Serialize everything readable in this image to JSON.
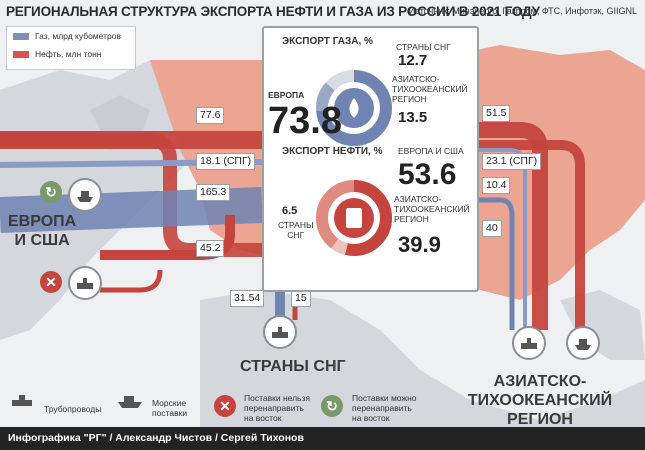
{
  "header": {
    "title": "РЕГИОНАЛЬНАЯ СТРУКТУРА ЭКСПОРТА НЕФТИ И ГАЗА ИЗ РОССИИ В 2021 ГОДУ",
    "source": "Источник: Минэнерго, Газпром, ФТС, Инфотэк, GIIGNL"
  },
  "legend": {
    "gas": "Газ, млрд кубометров",
    "oil": "Нефть, млн тонн",
    "gas_color": "#7b8fb9",
    "oil_color": "#d9534f"
  },
  "flows": {
    "europe_oil": "77.6",
    "europe_lng": "18.1 (СПГ)",
    "europe_gas": "165.3",
    "europe_oil2": "45.2",
    "cis_gas": "31.54",
    "cis_oil": "15",
    "asia_oil": "51.5",
    "asia_lng": "23.1 (СПГ)",
    "asia_gas": "10.4",
    "asia_oil2": "40"
  },
  "regions": {
    "europe_line1": "ЕВРОПА",
    "europe_line2": "И США",
    "cis": "СТРАНЫ СНГ",
    "asia_line1": "АЗИАТСКО- ТИХООКЕАНСКИЙ",
    "asia_line2": "РЕГИОН"
  },
  "gas_export": {
    "title": "ЭКСПОРТ ГАЗА, %",
    "europe_label": "ЕВРОПА",
    "europe_value": "73.8",
    "cis_label": "СТРАНЫ СНГ",
    "cis_value": "12.7",
    "asia_label_1": "АЗИАТСКО-",
    "asia_label_2": "ТИХООКЕАНСКИЙ",
    "asia_label_3": "РЕГИОН",
    "asia_value": "13.5"
  },
  "oil_export": {
    "title": "ЭКСПОРТ НЕФТИ, %",
    "europe_label": "ЕВРОПА И США",
    "europe_value": "53.6",
    "cis_value": "6.5",
    "cis_label_1": "СТРАНЫ",
    "cis_label_2": "СНГ",
    "asia_label_1": "АЗИАТСКО-",
    "asia_label_2": "ТИХООКЕАНСКИЙ",
    "asia_label_3": "РЕГИОН",
    "asia_value": "39.9"
  },
  "bottom_legend": {
    "pipelines": "Трубопроводы",
    "sea_1": "Морские",
    "sea_2": "поставки",
    "no_redirect_1": "Поставки нельзя",
    "no_redirect_2": "перенаправить",
    "no_redirect_3": "на восток",
    "can_redirect_1": "Поставки можно",
    "can_redirect_2": "перенаправить",
    "can_redirect_3": "на восток"
  },
  "footer": "Инфографика \"РГ\" / Александр Чистов / Сергей Тихонов"
}
